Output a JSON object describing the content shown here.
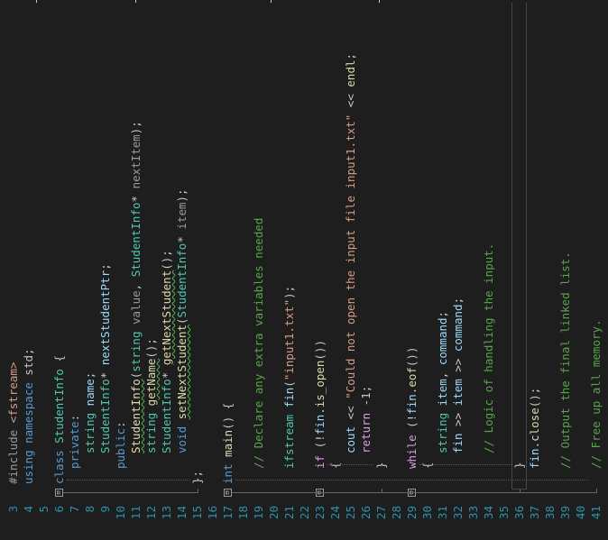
{
  "editor": {
    "lines": [
      {
        "no": "3",
        "fold": "",
        "indent": 0,
        "tokens": [
          {
            "c": "pp",
            "t": "#include "
          },
          {
            "c": "st",
            "t": "<fstream>"
          }
        ]
      },
      {
        "no": "4",
        "fold": "",
        "indent": 0,
        "tokens": [
          {
            "c": "kw",
            "t": "using "
          },
          {
            "c": "kw",
            "t": "namespace "
          },
          {
            "c": "pr",
            "t": "std;"
          }
        ]
      },
      {
        "no": "5",
        "fold": "",
        "indent": 0,
        "tokens": []
      },
      {
        "no": "6",
        "fold": "⊟",
        "indent": 0,
        "tokens": [
          {
            "c": "kw",
            "t": "class "
          },
          {
            "c": "ty",
            "t": "StudentInfo"
          },
          {
            "c": "pr",
            "t": " {"
          }
        ]
      },
      {
        "no": "7",
        "fold": "",
        "indent": 1,
        "tokens": [
          {
            "c": "kw",
            "t": "private"
          },
          {
            "c": "pr",
            "t": ":"
          }
        ]
      },
      {
        "no": "8",
        "fold": "",
        "indent": 2,
        "tokens": [
          {
            "c": "ty",
            "t": "string "
          },
          {
            "c": "vr",
            "t": "name"
          },
          {
            "c": "pr",
            "t": ";"
          }
        ]
      },
      {
        "no": "9",
        "fold": "",
        "indent": 2,
        "tokens": [
          {
            "c": "ty",
            "t": "StudentInfo"
          },
          {
            "c": "pr",
            "t": "* "
          },
          {
            "c": "vr",
            "t": "nextStudentPtr"
          },
          {
            "c": "pr",
            "t": ";"
          }
        ]
      },
      {
        "no": "10",
        "fold": "",
        "indent": 1,
        "tokens": [
          {
            "c": "kw",
            "t": "public"
          },
          {
            "c": "pr",
            "t": ":"
          }
        ]
      },
      {
        "no": "11",
        "fold": "",
        "indent": 2,
        "tokens": [
          {
            "c": "fn squig",
            "t": "StudentInfo"
          },
          {
            "c": "pr",
            "t": "("
          },
          {
            "c": "ty",
            "t": "string "
          },
          {
            "c": "pp",
            "t": "value"
          },
          {
            "c": "pr",
            "t": ", "
          },
          {
            "c": "ty",
            "t": "StudentInfo"
          },
          {
            "c": "pr",
            "t": "* "
          },
          {
            "c": "pp",
            "t": "nextItem"
          },
          {
            "c": "pr",
            "t": ");"
          }
        ]
      },
      {
        "no": "12",
        "fold": "",
        "indent": 2,
        "tokens": [
          {
            "c": "ty",
            "t": "string "
          },
          {
            "c": "fn squig",
            "t": "getName"
          },
          {
            "c": "pr",
            "t": "();"
          }
        ]
      },
      {
        "no": "13",
        "fold": "",
        "indent": 2,
        "tokens": [
          {
            "c": "ty",
            "t": "StudentInfo"
          },
          {
            "c": "pr",
            "t": "* "
          },
          {
            "c": "fn squig",
            "t": "getNextStudent"
          },
          {
            "c": "pr",
            "t": "();"
          }
        ]
      },
      {
        "no": "14",
        "fold": "",
        "indent": 2,
        "tokens": [
          {
            "c": "kw",
            "t": "void "
          },
          {
            "c": "fn squig",
            "t": "setNextStudent"
          },
          {
            "c": "pr",
            "t": "("
          },
          {
            "c": "ty",
            "t": "StudentInfo"
          },
          {
            "c": "pr",
            "t": "* "
          },
          {
            "c": "pp",
            "t": "item"
          },
          {
            "c": "pr",
            "t": ");"
          }
        ]
      },
      {
        "no": "15",
        "fold": "",
        "indent": 0,
        "tokens": [
          {
            "c": "pr",
            "t": "};"
          }
        ]
      },
      {
        "no": "16",
        "fold": "",
        "indent": 0,
        "tokens": []
      },
      {
        "no": "17",
        "fold": "⊟",
        "indent": 0,
        "tokens": [
          {
            "c": "kw",
            "t": "int "
          },
          {
            "c": "fn",
            "t": "main"
          },
          {
            "c": "pr",
            "t": "() {"
          }
        ]
      },
      {
        "no": "18",
        "fold": "",
        "indent": 0,
        "tokens": []
      },
      {
        "no": "19",
        "fold": "",
        "indent": 1,
        "tokens": [
          {
            "c": "cm",
            "t": "// Declare any extra variables needed"
          }
        ]
      },
      {
        "no": "20",
        "fold": "",
        "indent": 0,
        "tokens": []
      },
      {
        "no": "21",
        "fold": "",
        "indent": 1,
        "tokens": [
          {
            "c": "ty",
            "t": "ifstream "
          },
          {
            "c": "vr",
            "t": "fin"
          },
          {
            "c": "pr",
            "t": "("
          },
          {
            "c": "st",
            "t": "\"input1.txt\""
          },
          {
            "c": "pr",
            "t": ");"
          }
        ]
      },
      {
        "no": "22",
        "fold": "",
        "indent": 0,
        "tokens": []
      },
      {
        "no": "23",
        "fold": "⊟",
        "indent": 1,
        "tokens": [
          {
            "c": "ct",
            "t": "if "
          },
          {
            "c": "pr",
            "t": "(!"
          },
          {
            "c": "vr",
            "t": "fin"
          },
          {
            "c": "pr",
            "t": "."
          },
          {
            "c": "fn",
            "t": "is_open"
          },
          {
            "c": "pr",
            "t": "())"
          }
        ]
      },
      {
        "no": "24",
        "fold": "",
        "indent": 1,
        "tokens": [
          {
            "c": "pr",
            "t": "{"
          }
        ]
      },
      {
        "no": "25",
        "fold": "",
        "indent": 2,
        "tokens": [
          {
            "c": "vr",
            "t": "cout "
          },
          {
            "c": "pr",
            "t": "<< "
          },
          {
            "c": "st",
            "t": "\"Could not open the input file input1.txt\""
          },
          {
            "c": "pr",
            "t": " << "
          },
          {
            "c": "fn",
            "t": "endl"
          },
          {
            "c": "pr",
            "t": ";"
          }
        ]
      },
      {
        "no": "26",
        "fold": "",
        "indent": 2,
        "tokens": [
          {
            "c": "ct",
            "t": "return "
          },
          {
            "c": "pr",
            "t": "-1;"
          }
        ]
      },
      {
        "no": "27",
        "fold": "",
        "indent": 1,
        "tokens": [
          {
            "c": "pr",
            "t": "}"
          }
        ]
      },
      {
        "no": "28",
        "fold": "",
        "indent": 0,
        "tokens": []
      },
      {
        "no": "29",
        "fold": "⊟",
        "indent": 1,
        "tokens": [
          {
            "c": "ct",
            "t": "while "
          },
          {
            "c": "pr",
            "t": "(!"
          },
          {
            "c": "vr",
            "t": "fin"
          },
          {
            "c": "pr",
            "t": "."
          },
          {
            "c": "fn",
            "t": "eof"
          },
          {
            "c": "pr",
            "t": "())"
          }
        ]
      },
      {
        "no": "30",
        "fold": "",
        "indent": 1,
        "tokens": [
          {
            "c": "pr",
            "t": "{"
          }
        ]
      },
      {
        "no": "31",
        "fold": "",
        "indent": 2,
        "tokens": [
          {
            "c": "ty",
            "t": "string "
          },
          {
            "c": "vr",
            "t": "item"
          },
          {
            "c": "pr",
            "t": ", "
          },
          {
            "c": "vr",
            "t": "command"
          },
          {
            "c": "pr",
            "t": ";"
          }
        ]
      },
      {
        "no": "32",
        "fold": "",
        "indent": 2,
        "tokens": [
          {
            "c": "vr",
            "t": "fin "
          },
          {
            "c": "pr",
            "t": ">> "
          },
          {
            "c": "vr",
            "t": "item "
          },
          {
            "c": "pr",
            "t": ">> "
          },
          {
            "c": "vr",
            "t": "command"
          },
          {
            "c": "pr",
            "t": ";"
          }
        ]
      },
      {
        "no": "33",
        "fold": "",
        "indent": 0,
        "tokens": []
      },
      {
        "no": "34",
        "fold": "",
        "indent": 2,
        "tokens": [
          {
            "c": "cm",
            "t": "// Logic of handling the input."
          }
        ]
      },
      {
        "no": "35",
        "fold": "",
        "indent": 0,
        "tokens": []
      },
      {
        "no": "36",
        "fold": "",
        "indent": 1,
        "tokens": [
          {
            "c": "pr",
            "t": "}"
          }
        ]
      },
      {
        "no": "37",
        "fold": "",
        "indent": 1,
        "tokens": [
          {
            "c": "vr",
            "t": "fin"
          },
          {
            "c": "pr",
            "t": "."
          },
          {
            "c": "fn",
            "t": "close"
          },
          {
            "c": "pr",
            "t": "();"
          }
        ]
      },
      {
        "no": "38",
        "fold": "",
        "indent": 0,
        "tokens": []
      },
      {
        "no": "39",
        "fold": "",
        "indent": 1,
        "tokens": [
          {
            "c": "cm",
            "t": "// Output the final linked list."
          }
        ]
      },
      {
        "no": "40",
        "fold": "",
        "indent": 0,
        "tokens": []
      },
      {
        "no": "41",
        "fold": "",
        "indent": 1,
        "tokens": [
          {
            "c": "cm",
            "t": "// Free up all memory."
          }
        ]
      }
    ],
    "current_line": "36"
  }
}
